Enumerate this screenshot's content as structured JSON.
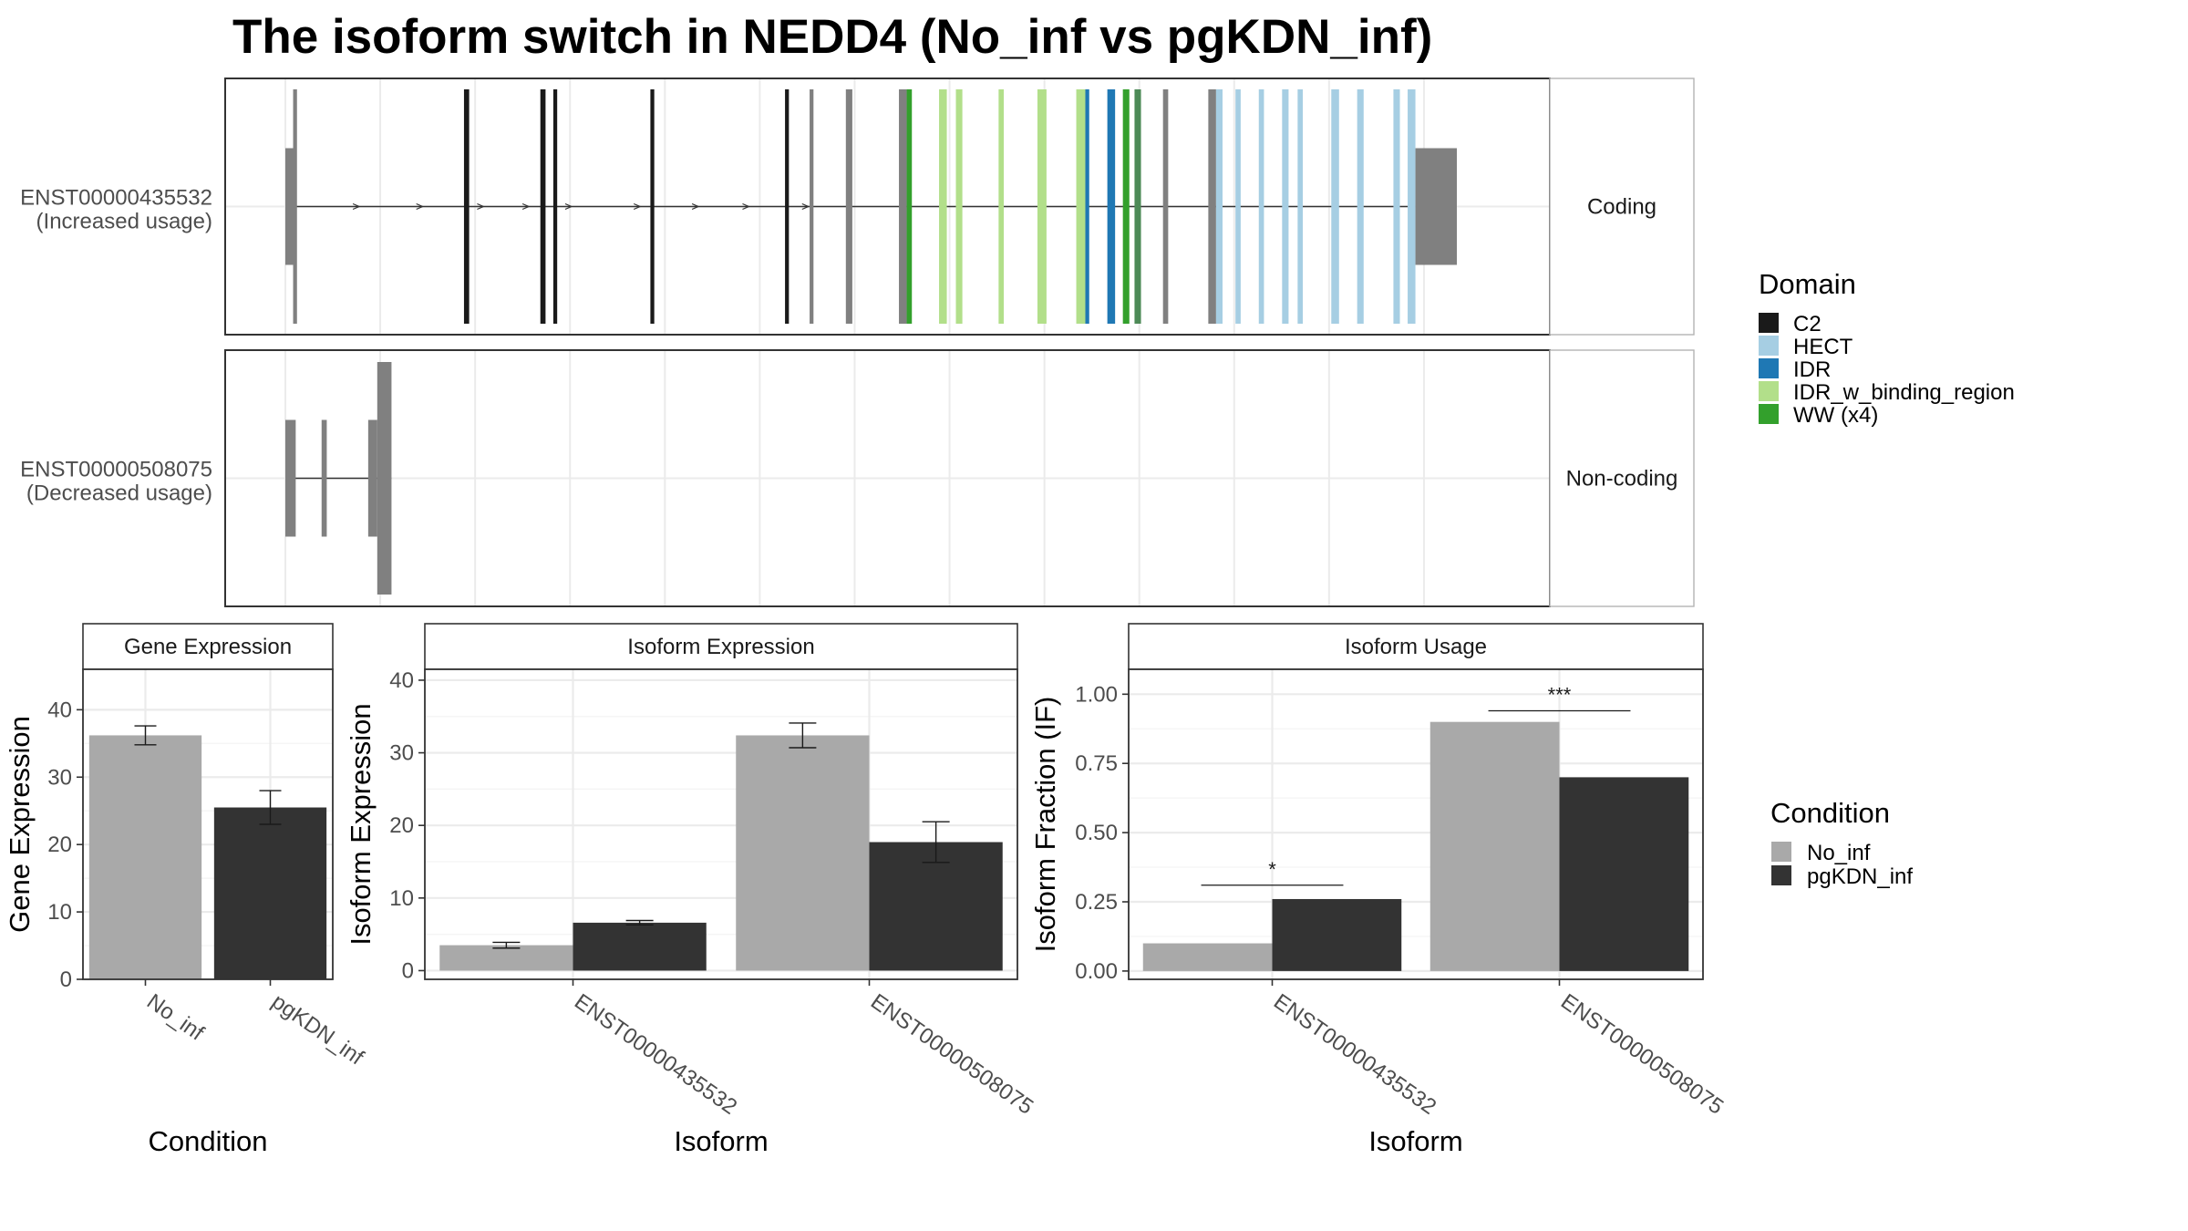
{
  "figure": {
    "title": "The isoform switch in NEDD4 (No_inf vs pgKDN_inf)"
  },
  "chart_data": [
    {
      "type": "transcript_structure",
      "panel": "isoform-structures",
      "transcripts": [
        {
          "id_label": "ENST00000435532",
          "usage_label": "(Increased usage)",
          "strip_label": "Coding",
          "exons": [
            {
              "s": 0.0,
              "e": 0.008,
              "h": "utr",
              "c": "#808080"
            },
            {
              "s": 0.006,
              "e": 0.009,
              "h": "cds",
              "c": "#808080"
            },
            {
              "s": 0.138,
              "e": 0.142,
              "h": "cds",
              "c": "#1a1a1a"
            },
            {
              "s": 0.197,
              "e": 0.201,
              "h": "cds",
              "c": "#1a1a1a"
            },
            {
              "s": 0.207,
              "e": 0.21,
              "h": "cds",
              "c": "#1a1a1a"
            },
            {
              "s": 0.282,
              "e": 0.285,
              "h": "cds",
              "c": "#1a1a1a"
            },
            {
              "s": 0.386,
              "e": 0.389,
              "h": "cds",
              "c": "#1a1a1a"
            },
            {
              "s": 0.405,
              "e": 0.408,
              "h": "cds",
              "c": "#808080"
            },
            {
              "s": 0.433,
              "e": 0.438,
              "h": "cds",
              "c": "#808080"
            },
            {
              "s": 0.474,
              "e": 0.48,
              "h": "cds",
              "c": "#808080"
            },
            {
              "s": 0.48,
              "e": 0.484,
              "h": "cds",
              "c": "#33a02c"
            },
            {
              "s": 0.505,
              "e": 0.511,
              "h": "cds",
              "c": "#b2df8a"
            },
            {
              "s": 0.518,
              "e": 0.523,
              "h": "cds",
              "c": "#b2df8a"
            },
            {
              "s": 0.551,
              "e": 0.555,
              "h": "cds",
              "c": "#b2df8a"
            },
            {
              "s": 0.581,
              "e": 0.588,
              "h": "cds",
              "c": "#b2df8a"
            },
            {
              "s": 0.611,
              "e": 0.618,
              "h": "cds",
              "c": "#b2df8a"
            },
            {
              "s": 0.618,
              "e": 0.621,
              "h": "cds",
              "c": "#1f78b4"
            },
            {
              "s": 0.635,
              "e": 0.641,
              "h": "cds",
              "c": "#1f78b4"
            },
            {
              "s": 0.647,
              "e": 0.652,
              "h": "cds",
              "c": "#33a02c"
            },
            {
              "s": 0.656,
              "e": 0.661,
              "h": "cds",
              "c": "#4d8a57"
            },
            {
              "s": 0.678,
              "e": 0.682,
              "h": "cds",
              "c": "#808080"
            },
            {
              "s": 0.713,
              "e": 0.719,
              "h": "cds",
              "c": "#808080"
            },
            {
              "s": 0.719,
              "e": 0.724,
              "h": "cds",
              "c": "#a6cee3"
            },
            {
              "s": 0.734,
              "e": 0.738,
              "h": "cds",
              "c": "#a6cee3"
            },
            {
              "s": 0.752,
              "e": 0.756,
              "h": "cds",
              "c": "#a6cee3"
            },
            {
              "s": 0.77,
              "e": 0.775,
              "h": "cds",
              "c": "#a6cee3"
            },
            {
              "s": 0.782,
              "e": 0.786,
              "h": "cds",
              "c": "#a6cee3"
            },
            {
              "s": 0.808,
              "e": 0.814,
              "h": "cds",
              "c": "#a6cee3"
            },
            {
              "s": 0.828,
              "e": 0.833,
              "h": "cds",
              "c": "#a6cee3"
            },
            {
              "s": 0.856,
              "e": 0.861,
              "h": "cds",
              "c": "#a6cee3"
            },
            {
              "s": 0.867,
              "e": 0.873,
              "h": "cds",
              "c": "#a6cee3"
            },
            {
              "s": 0.873,
              "e": 0.905,
              "h": "utr",
              "c": "#808080"
            }
          ],
          "intron": [
            0.0,
            0.873
          ],
          "arrows": [
            0.055,
            0.104,
            0.151,
            0.186,
            0.219,
            0.272,
            0.317,
            0.356,
            0.402
          ]
        },
        {
          "id_label": "ENST00000508075",
          "usage_label": "(Decreased usage)",
          "strip_label": "Non-coding",
          "exons": [
            {
              "s": 0.0,
              "e": 0.008,
              "h": "nc",
              "c": "#808080"
            },
            {
              "s": 0.028,
              "e": 0.032,
              "h": "nc",
              "c": "#808080"
            },
            {
              "s": 0.064,
              "e": 0.071,
              "h": "nc",
              "c": "#808080"
            },
            {
              "s": 0.071,
              "e": 0.082,
              "h": "tall",
              "c": "#808080"
            }
          ],
          "intron": [
            0.0,
            0.082
          ],
          "arrows": []
        }
      ],
      "domain_legend": {
        "title": "Domain",
        "entries": [
          {
            "label": "C2",
            "color": "#1a1a1a"
          },
          {
            "label": "HECT",
            "color": "#a6cee3"
          },
          {
            "label": "IDR",
            "color": "#1f78b4"
          },
          {
            "label": "IDR_w_binding_region",
            "color": "#b2df8a"
          },
          {
            "label": "WW (x4)",
            "color": "#33a02c"
          }
        ]
      }
    },
    {
      "type": "bar",
      "panel": "gene-expression",
      "strip": "Gene Expression",
      "xlabel": "Condition",
      "ylabel": "Gene Expression",
      "ylim": [
        0,
        46
      ],
      "yticks": [
        0,
        10,
        20,
        30,
        40
      ],
      "categories": [
        "No_inf",
        "pgKDN_inf"
      ],
      "values": [
        36.2,
        25.5
      ],
      "errors": [
        [
          34.8,
          37.6
        ],
        [
          23.0,
          28.0
        ]
      ],
      "colors": [
        "#a9a9a9",
        "#333333"
      ]
    },
    {
      "type": "bar",
      "panel": "isoform-expression",
      "strip": "Isoform Expression",
      "xlabel": "Isoform",
      "ylabel": "Isoform Expression",
      "ylim": [
        -1.2,
        41.5
      ],
      "yticks": [
        0,
        10,
        20,
        30,
        40
      ],
      "categories": [
        "ENST00000435532",
        "ENST00000508075"
      ],
      "series": [
        {
          "name": "No_inf",
          "color": "#a9a9a9",
          "values": [
            3.5,
            32.4
          ],
          "errors": [
            [
              3.1,
              3.9
            ],
            [
              30.7,
              34.1
            ]
          ]
        },
        {
          "name": "pgKDN_inf",
          "color": "#333333",
          "values": [
            6.6,
            17.7
          ],
          "errors": [
            [
              6.3,
              6.9
            ],
            [
              14.9,
              20.5
            ]
          ]
        }
      ]
    },
    {
      "type": "bar",
      "panel": "isoform-usage",
      "strip": "Isoform Usage",
      "xlabel": "Isoform",
      "ylabel": "Isoform Fraction (IF)",
      "ylim": [
        -0.03,
        1.09
      ],
      "yticks": [
        0.0,
        0.25,
        0.5,
        0.75,
        1.0
      ],
      "ytick_labels": [
        "0.00",
        "0.25",
        "0.50",
        "0.75",
        "1.00"
      ],
      "categories": [
        "ENST00000435532",
        "ENST00000508075"
      ],
      "series": [
        {
          "name": "No_inf",
          "color": "#a9a9a9",
          "values": [
            0.1,
            0.9
          ]
        },
        {
          "name": "pgKDN_inf",
          "color": "#333333",
          "values": [
            0.26,
            0.7
          ]
        }
      ],
      "significance": [
        {
          "category": 0,
          "y": 0.31,
          "label": "*"
        },
        {
          "category": 1,
          "y": 0.94,
          "label": "***"
        }
      ]
    }
  ],
  "condition_legend": {
    "title": "Condition",
    "entries": [
      {
        "label": "No_inf",
        "color": "#a9a9a9"
      },
      {
        "label": "pgKDN_inf",
        "color": "#333333"
      }
    ]
  }
}
